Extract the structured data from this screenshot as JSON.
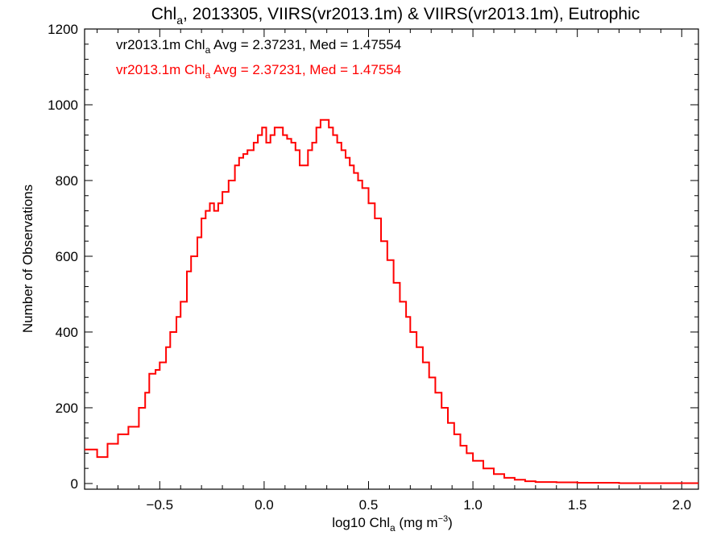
{
  "chart_data": {
    "type": "line",
    "title": {
      "prefix": "Chl",
      "subscript": "a",
      "suffix": ", 2013305, VIIRS(vr2013.1m) & VIIRS(vr2013.1m), Eutrophic"
    },
    "xlabel": {
      "prefix": "log10 Chl",
      "subscript": "a",
      "suffix": " (mg m",
      "superscript": "−3",
      "close": ")"
    },
    "ylabel": "Number of Observations",
    "xlim": [
      -0.86,
      2.08
    ],
    "ylim": [
      -15,
      1200
    ],
    "xticks": [
      -0.5,
      0.0,
      0.5,
      1.0,
      1.5,
      2.0
    ],
    "xtick_labels": [
      "−0.5",
      "0.0",
      "0.5",
      "1.0",
      "1.5",
      "2.0"
    ],
    "yticks": [
      0,
      200,
      400,
      600,
      800,
      1000,
      1200
    ],
    "ytick_labels": [
      "0",
      "200",
      "400",
      "600",
      "800",
      "1000",
      "1200"
    ],
    "grid": false,
    "legend_position": "top-left",
    "legend": [
      {
        "name": "vr2013.1m",
        "prefix": "vr2013.1m Chl",
        "subscript": "a",
        "suffix": " Avg = 2.37231, Med = 1.47554",
        "color": "#000000"
      },
      {
        "name": "vr2013.1m",
        "prefix": "vr2013.1m Chl",
        "subscript": "a",
        "suffix": " Avg = 2.37231, Med = 1.47554",
        "color": "#ff0000"
      }
    ],
    "series": [
      {
        "name": "vr2013.1m",
        "color": "#ff0000",
        "x": [
          -0.86,
          -0.8,
          -0.75,
          -0.7,
          -0.65,
          -0.6,
          -0.57,
          -0.55,
          -0.52,
          -0.5,
          -0.47,
          -0.45,
          -0.42,
          -0.4,
          -0.37,
          -0.35,
          -0.32,
          -0.3,
          -0.28,
          -0.26,
          -0.24,
          -0.22,
          -0.2,
          -0.17,
          -0.14,
          -0.12,
          -0.1,
          -0.08,
          -0.05,
          -0.03,
          -0.01,
          0.01,
          0.03,
          0.05,
          0.07,
          0.09,
          0.11,
          0.13,
          0.15,
          0.17,
          0.19,
          0.21,
          0.23,
          0.25,
          0.27,
          0.29,
          0.31,
          0.33,
          0.35,
          0.37,
          0.39,
          0.41,
          0.43,
          0.45,
          0.47,
          0.5,
          0.53,
          0.56,
          0.59,
          0.62,
          0.65,
          0.68,
          0.7,
          0.73,
          0.76,
          0.79,
          0.82,
          0.85,
          0.88,
          0.91,
          0.94,
          0.97,
          1.0,
          1.05,
          1.1,
          1.15,
          1.2,
          1.25,
          1.3,
          1.4,
          1.5,
          1.6,
          1.7,
          1.8,
          1.9,
          2.0,
          2.08
        ],
        "values": [
          90,
          70,
          105,
          130,
          150,
          200,
          240,
          290,
          300,
          320,
          360,
          400,
          440,
          480,
          560,
          600,
          650,
          700,
          720,
          740,
          720,
          740,
          770,
          800,
          840,
          860,
          870,
          880,
          900,
          920,
          940,
          900,
          920,
          940,
          940,
          920,
          910,
          900,
          880,
          840,
          840,
          880,
          900,
          940,
          960,
          960,
          940,
          920,
          900,
          880,
          860,
          840,
          820,
          800,
          780,
          740,
          700,
          640,
          590,
          530,
          480,
          440,
          400,
          360,
          320,
          280,
          240,
          200,
          160,
          130,
          100,
          80,
          60,
          40,
          25,
          15,
          10,
          6,
          4,
          3,
          2,
          2,
          1,
          1,
          1,
          1,
          1
        ]
      }
    ]
  }
}
